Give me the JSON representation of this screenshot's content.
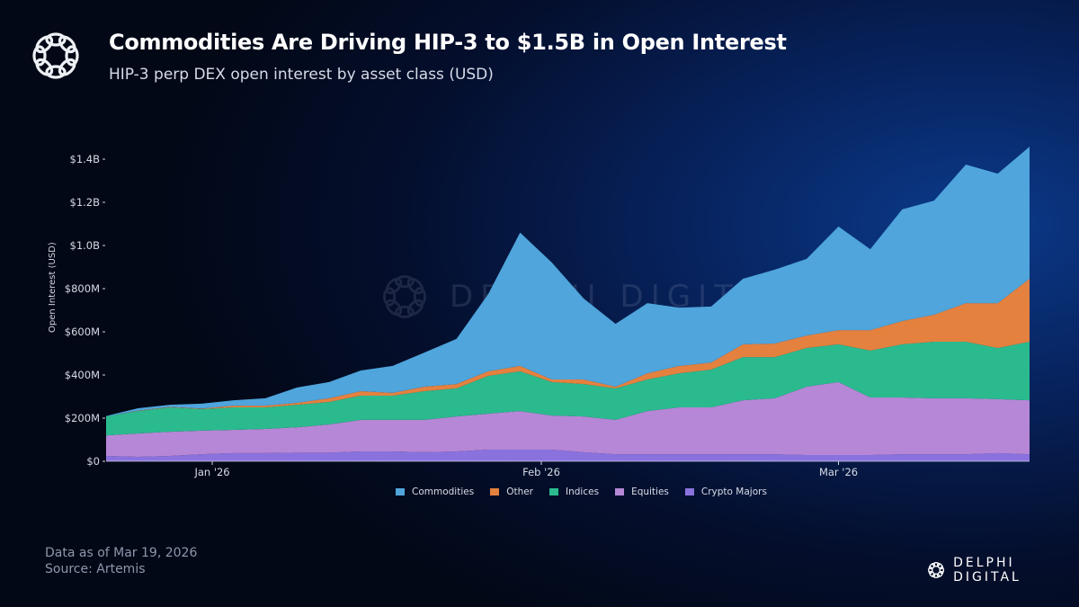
{
  "header": {
    "title": "Commodities Are Driving HIP-3 to $1.5B in Open Interest",
    "subtitle": "HIP-3 perp DEX open interest by asset class (USD)"
  },
  "footer": {
    "data_as_of": "Data as of Mar 19, 2026",
    "source": "Source: Artemis"
  },
  "brand": {
    "name": "DELPHI DIGITAL",
    "logo_icon": "delphi-knot-icon"
  },
  "watermark": {
    "text": "DELPHI DIGITAL"
  },
  "chart_data": {
    "type": "area",
    "stacked": true,
    "title": "Commodities Are Driving HIP-3 to $1.5B in Open Interest",
    "subtitle": "HIP-3 perp DEX open interest by asset class (USD)",
    "xlabel": "",
    "ylabel": "Open Interest (USD)",
    "ylim": [
      0,
      1500000000
    ],
    "yticks": [
      0,
      200000000,
      400000000,
      600000000,
      800000000,
      1000000000,
      1200000000,
      1400000000
    ],
    "ytick_labels": [
      "$0",
      "$200M",
      "$400M",
      "$600M",
      "$800M",
      "$1.0B",
      "$1.2B",
      "$1.4B"
    ],
    "xticks": [
      "2026-01-01",
      "2026-02-01",
      "2026-03-01"
    ],
    "xtick_labels": [
      "Jan '26",
      "Feb '26",
      "Mar '26"
    ],
    "grid": false,
    "legend_position": "bottom",
    "x": [
      "2025-12-22",
      "2025-12-25",
      "2025-12-28",
      "2025-12-31",
      "2026-01-03",
      "2026-01-06",
      "2026-01-09",
      "2026-01-12",
      "2026-01-15",
      "2026-01-18",
      "2026-01-21",
      "2026-01-24",
      "2026-01-27",
      "2026-01-30",
      "2026-02-02",
      "2026-02-05",
      "2026-02-08",
      "2026-02-11",
      "2026-02-14",
      "2026-02-17",
      "2026-02-20",
      "2026-02-23",
      "2026-02-26",
      "2026-03-01",
      "2026-03-04",
      "2026-03-07",
      "2026-03-10",
      "2026-03-13",
      "2026-03-16",
      "2026-03-19"
    ],
    "unit": "USD millions",
    "series": [
      {
        "name": "Crypto Majors",
        "color": "#8a72de",
        "values": [
          25,
          21,
          25,
          33,
          38,
          38,
          40,
          40,
          46,
          46,
          42,
          46,
          54,
          54,
          54,
          42,
          33,
          33,
          33,
          33,
          33,
          33,
          29,
          29,
          29,
          33,
          33,
          33,
          38,
          33
        ]
      },
      {
        "name": "Equities",
        "color": "#b687d6",
        "values": [
          95,
          108,
          112,
          109,
          108,
          112,
          118,
          131,
          146,
          146,
          150,
          162,
          167,
          179,
          158,
          166,
          159,
          200,
          217,
          217,
          250,
          259,
          317,
          338,
          267,
          263,
          259,
          259,
          250,
          250
        ]
      },
      {
        "name": "Indices",
        "color": "#2bba8e",
        "values": [
          88,
          104,
          113,
          100,
          104,
          100,
          104,
          104,
          112,
          112,
          133,
          130,
          175,
          184,
          155,
          150,
          146,
          146,
          158,
          175,
          200,
          191,
          179,
          175,
          217,
          246,
          262,
          262,
          237,
          271
        ]
      },
      {
        "name": "Other",
        "color": "#e4813f",
        "values": [
          0,
          1,
          2,
          2,
          8,
          8,
          9,
          17,
          21,
          13,
          21,
          20,
          21,
          25,
          12,
          21,
          8,
          29,
          34,
          33,
          59,
          63,
          58,
          66,
          95,
          108,
          125,
          179,
          208,
          292
        ]
      },
      {
        "name": "Commodities",
        "color": "#4fa5dc",
        "values": [
          2,
          12,
          10,
          23,
          25,
          34,
          71,
          75,
          96,
          125,
          158,
          209,
          358,
          618,
          542,
          375,
          291,
          325,
          270,
          259,
          304,
          342,
          355,
          480,
          375,
          517,
          529,
          642,
          600,
          612
        ]
      }
    ],
    "legend": [
      "Commodities",
      "Other",
      "Indices",
      "Equities",
      "Crypto Majors"
    ]
  }
}
